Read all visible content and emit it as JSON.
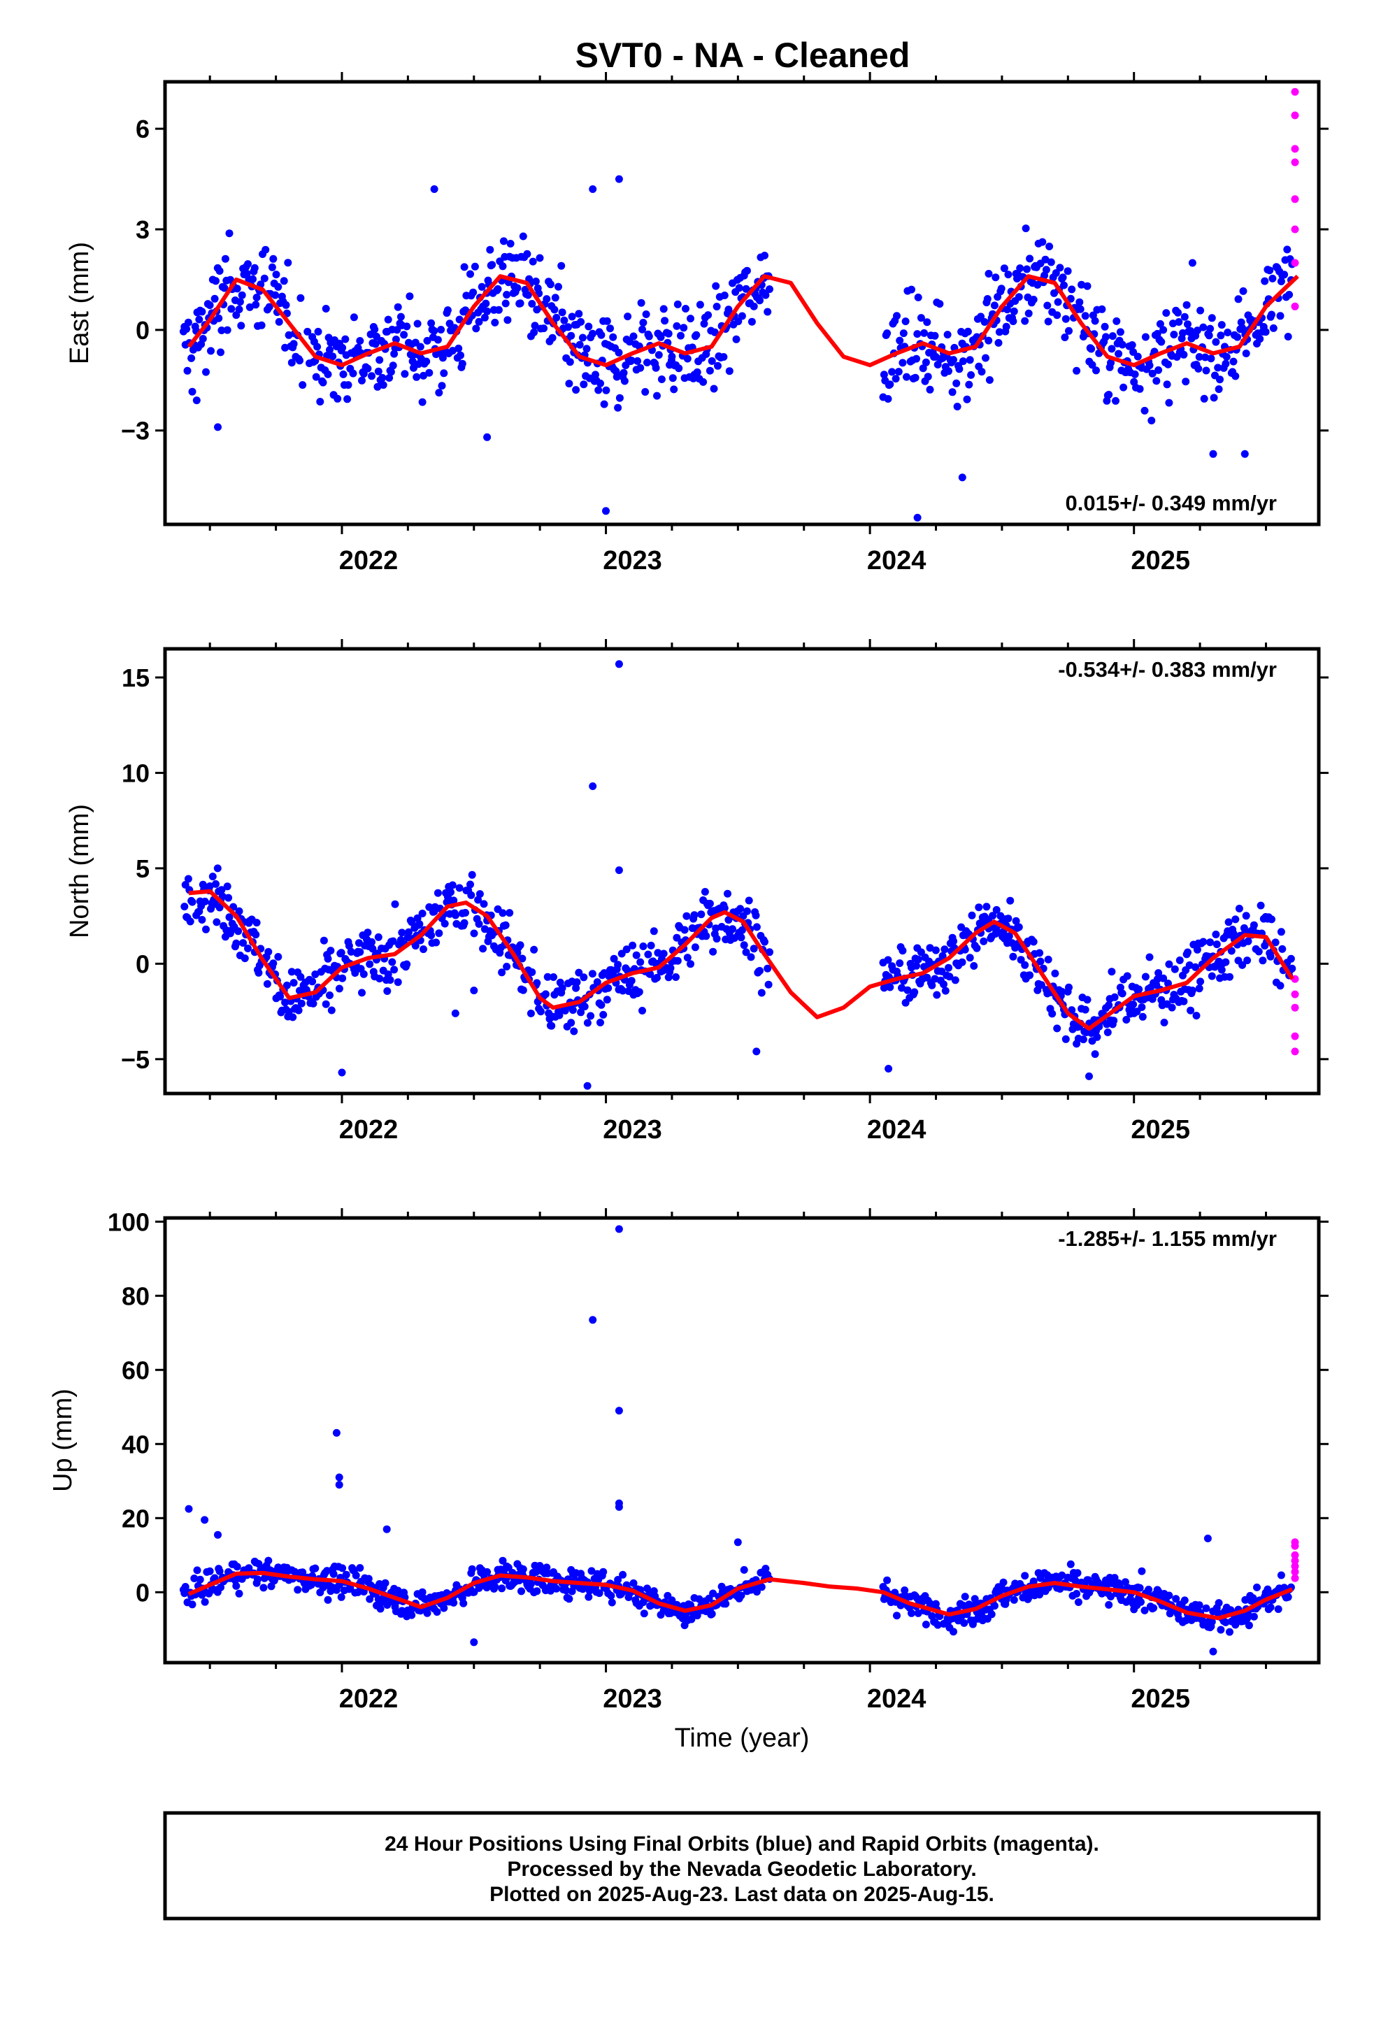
{
  "page": {
    "title": "SVT0  - NA - Cleaned",
    "footer": [
      "24 Hour Positions Using Final Orbits (blue) and Rapid Orbits (magenta).",
      "Processed by the Nevada Geodetic Laboratory.",
      "Plotted on 2025-Aug-23. Last data on 2025-Aug-15."
    ]
  },
  "colors": {
    "final": "#0000ff",
    "rapid": "#ff00ff",
    "model": "#ff0000",
    "frame": "#000000"
  },
  "chart_data": [
    {
      "type": "scatter",
      "name": "east",
      "title": "SVT0  - NA - Cleaned",
      "ylabel": "East (mm)",
      "xlabel": "",
      "xlim": [
        2021.33,
        2025.7
      ],
      "ylim": [
        -5.8,
        7.4
      ],
      "yticks": [
        -3,
        0,
        3,
        6
      ],
      "xticks": [
        2022,
        2023,
        2024,
        2025
      ],
      "rate_text": "0.015+/- 0.349 mm/yr",
      "grid": false,
      "model": {
        "type": "line",
        "points": [
          [
            2021.42,
            -0.5
          ],
          [
            2021.5,
            0.3
          ],
          [
            2021.6,
            1.5
          ],
          [
            2021.7,
            1.2
          ],
          [
            2021.8,
            0.2
          ],
          [
            2021.9,
            -0.8
          ],
          [
            2022.0,
            -1.05
          ],
          [
            2022.1,
            -0.7
          ],
          [
            2022.2,
            -0.4
          ],
          [
            2022.3,
            -0.7
          ],
          [
            2022.4,
            -0.5
          ],
          [
            2022.5,
            0.7
          ],
          [
            2022.6,
            1.6
          ],
          [
            2022.7,
            1.4
          ],
          [
            2022.8,
            0.2
          ],
          [
            2022.9,
            -0.8
          ],
          [
            2023.0,
            -1.05
          ],
          [
            2023.1,
            -0.7
          ],
          [
            2023.2,
            -0.4
          ],
          [
            2023.3,
            -0.7
          ],
          [
            2023.4,
            -0.5
          ],
          [
            2023.5,
            0.7
          ],
          [
            2023.6,
            1.6
          ],
          [
            2023.7,
            1.4
          ],
          [
            2023.8,
            0.2
          ],
          [
            2023.9,
            -0.8
          ],
          [
            2024.0,
            -1.05
          ],
          [
            2024.1,
            -0.7
          ],
          [
            2024.2,
            -0.4
          ],
          [
            2024.3,
            -0.7
          ],
          [
            2024.4,
            -0.5
          ],
          [
            2024.5,
            0.7
          ],
          [
            2024.6,
            1.6
          ],
          [
            2024.7,
            1.4
          ],
          [
            2024.8,
            0.2
          ],
          [
            2024.9,
            -0.8
          ],
          [
            2025.0,
            -1.05
          ],
          [
            2025.1,
            -0.7
          ],
          [
            2025.2,
            -0.4
          ],
          [
            2025.3,
            -0.7
          ],
          [
            2025.4,
            -0.5
          ],
          [
            2025.5,
            0.7
          ],
          [
            2025.62,
            1.6
          ]
        ]
      },
      "segments": [
        [
          2021.4,
          2021.95
        ],
        [
          2021.95,
          2022.55
        ],
        [
          2022.55,
          2023.25
        ],
        [
          2023.25,
          2023.62
        ],
        [
          2024.05,
          2024.45
        ],
        [
          2024.45,
          2025.0
        ],
        [
          2025.0,
          2025.6
        ]
      ],
      "noise": 1.1,
      "outliers_final": [
        [
          2021.45,
          -2.1
        ],
        [
          2021.53,
          -2.9
        ],
        [
          2022.35,
          4.2
        ],
        [
          2022.95,
          4.2
        ],
        [
          2023.05,
          4.5
        ],
        [
          2023.0,
          -5.4
        ],
        [
          2024.18,
          -5.6
        ],
        [
          2024.35,
          -4.4
        ],
        [
          2022.55,
          -3.2
        ],
        [
          2025.3,
          -3.7
        ],
        [
          2025.42,
          -3.7
        ]
      ],
      "rapid": [
        [
          2025.61,
          7.1
        ],
        [
          2025.61,
          6.4
        ],
        [
          2025.61,
          5.4
        ],
        [
          2025.61,
          5.0
        ],
        [
          2025.61,
          3.9
        ],
        [
          2025.61,
          3.0
        ],
        [
          2025.61,
          2.0
        ],
        [
          2025.61,
          0.7
        ]
      ]
    },
    {
      "type": "scatter",
      "name": "north",
      "ylabel": "North (mm)",
      "xlabel": "",
      "xlim": [
        2021.33,
        2025.7
      ],
      "ylim": [
        -6.8,
        16.5
      ],
      "yticks": [
        -5,
        0,
        5,
        10,
        15
      ],
      "xticks": [
        2022,
        2023,
        2024,
        2025
      ],
      "rate_text": "-0.534+/- 0.383 mm/yr",
      "grid": false,
      "model": {
        "type": "line",
        "points": [
          [
            2021.42,
            3.7
          ],
          [
            2021.5,
            3.8
          ],
          [
            2021.6,
            2.5
          ],
          [
            2021.7,
            0.2
          ],
          [
            2021.8,
            -1.8
          ],
          [
            2021.9,
            -1.5
          ],
          [
            2022.0,
            -0.2
          ],
          [
            2022.1,
            0.3
          ],
          [
            2022.2,
            0.5
          ],
          [
            2022.3,
            1.5
          ],
          [
            2022.4,
            3.0
          ],
          [
            2022.47,
            3.2
          ],
          [
            2022.55,
            2.5
          ],
          [
            2022.65,
            0.5
          ],
          [
            2022.75,
            -1.8
          ],
          [
            2022.8,
            -2.3
          ],
          [
            2022.9,
            -2.0
          ],
          [
            2023.0,
            -1.0
          ],
          [
            2023.1,
            -0.5
          ],
          [
            2023.2,
            -0.2
          ],
          [
            2023.3,
            1.0
          ],
          [
            2023.4,
            2.4
          ],
          [
            2023.45,
            2.7
          ],
          [
            2023.52,
            2.2
          ],
          [
            2023.6,
            0.5
          ],
          [
            2023.7,
            -1.5
          ],
          [
            2023.8,
            -2.8
          ],
          [
            2023.9,
            -2.3
          ],
          [
            2024.0,
            -1.2
          ],
          [
            2024.1,
            -0.8
          ],
          [
            2024.2,
            -0.5
          ],
          [
            2024.3,
            0.3
          ],
          [
            2024.4,
            1.6
          ],
          [
            2024.47,
            2.2
          ],
          [
            2024.55,
            1.6
          ],
          [
            2024.65,
            -0.5
          ],
          [
            2024.75,
            -2.6
          ],
          [
            2024.83,
            -3.4
          ],
          [
            2024.9,
            -2.7
          ],
          [
            2025.0,
            -1.7
          ],
          [
            2025.1,
            -1.4
          ],
          [
            2025.2,
            -1.0
          ],
          [
            2025.3,
            0.3
          ],
          [
            2025.42,
            1.5
          ],
          [
            2025.5,
            1.4
          ],
          [
            2025.6,
            -0.8
          ]
        ]
      },
      "segments": [
        [
          2021.4,
          2021.95
        ],
        [
          2021.95,
          2022.55
        ],
        [
          2022.55,
          2023.25
        ],
        [
          2023.25,
          2023.62
        ],
        [
          2024.05,
          2024.45
        ],
        [
          2024.45,
          2025.0
        ],
        [
          2025.0,
          2025.6
        ]
      ],
      "noise": 1.3,
      "outliers_final": [
        [
          2023.05,
          15.7
        ],
        [
          2022.95,
          9.3
        ],
        [
          2023.05,
          4.9
        ],
        [
          2022.93,
          -6.4
        ],
        [
          2022.0,
          -5.7
        ],
        [
          2024.07,
          -5.5
        ],
        [
          2024.83,
          -5.9
        ],
        [
          2022.43,
          -2.6
        ],
        [
          2022.5,
          -1.4
        ],
        [
          2023.57,
          -4.6
        ]
      ],
      "rapid": [
        [
          2025.61,
          -0.8
        ],
        [
          2025.61,
          -1.6
        ],
        [
          2025.61,
          -2.3
        ],
        [
          2025.61,
          -3.8
        ],
        [
          2025.61,
          -4.6
        ]
      ]
    },
    {
      "type": "scatter",
      "name": "up",
      "ylabel": "Up (mm)",
      "xlabel": "Time (year)",
      "xlim": [
        2021.33,
        2025.7
      ],
      "ylim": [
        -19,
        101
      ],
      "yticks": [
        0,
        20,
        40,
        60,
        80,
        100
      ],
      "xticks": [
        2022,
        2023,
        2024,
        2025
      ],
      "rate_text": "-1.285+/- 1.155 mm/yr",
      "grid": false,
      "model": {
        "type": "line",
        "points": [
          [
            2021.42,
            -0.5
          ],
          [
            2021.5,
            2.0
          ],
          [
            2021.6,
            5.0
          ],
          [
            2021.7,
            5.2
          ],
          [
            2021.8,
            4.2
          ],
          [
            2021.9,
            3.5
          ],
          [
            2022.0,
            3.0
          ],
          [
            2022.1,
            1.0
          ],
          [
            2022.2,
            -1.5
          ],
          [
            2022.3,
            -4.0
          ],
          [
            2022.4,
            -1.5
          ],
          [
            2022.5,
            2.5
          ],
          [
            2022.6,
            4.5
          ],
          [
            2022.7,
            4.0
          ],
          [
            2022.8,
            3.0
          ],
          [
            2022.9,
            2.5
          ],
          [
            2023.0,
            2.0
          ],
          [
            2023.1,
            0.5
          ],
          [
            2023.2,
            -3.0
          ],
          [
            2023.3,
            -5.0
          ],
          [
            2023.4,
            -3.5
          ],
          [
            2023.5,
            1.0
          ],
          [
            2023.62,
            3.5
          ],
          [
            2023.75,
            2.5
          ],
          [
            2023.85,
            1.5
          ],
          [
            2023.95,
            1.0
          ],
          [
            2024.05,
            0.0
          ],
          [
            2024.15,
            -3.0
          ],
          [
            2024.3,
            -6.0
          ],
          [
            2024.4,
            -4.5
          ],
          [
            2024.5,
            -1.0
          ],
          [
            2024.6,
            1.5
          ],
          [
            2024.7,
            2.5
          ],
          [
            2024.8,
            1.5
          ],
          [
            2024.9,
            0.8
          ],
          [
            2025.0,
            0.0
          ],
          [
            2025.1,
            -2.5
          ],
          [
            2025.2,
            -5.5
          ],
          [
            2025.32,
            -7.0
          ],
          [
            2025.42,
            -5.0
          ],
          [
            2025.5,
            -2.0
          ],
          [
            2025.6,
            0.8
          ]
        ]
      },
      "segments": [
        [
          2021.4,
          2021.95
        ],
        [
          2021.95,
          2022.55
        ],
        [
          2022.55,
          2023.25
        ],
        [
          2023.25,
          2023.62
        ],
        [
          2024.05,
          2024.45
        ],
        [
          2024.45,
          2025.0
        ],
        [
          2025.0,
          2025.6
        ]
      ],
      "noise": 3.2,
      "outliers_final": [
        [
          2023.05,
          98
        ],
        [
          2022.95,
          73.5
        ],
        [
          2023.05,
          49
        ],
        [
          2023.05,
          24
        ],
        [
          2023.05,
          23
        ],
        [
          2021.98,
          43
        ],
        [
          2021.99,
          31
        ],
        [
          2021.99,
          29
        ],
        [
          2022.17,
          17
        ],
        [
          2021.42,
          22.5
        ],
        [
          2021.48,
          19.5
        ],
        [
          2025.28,
          14.5
        ],
        [
          2023.5,
          13.5
        ],
        [
          2022.5,
          -13.5
        ],
        [
          2021.53,
          15.5
        ],
        [
          2025.3,
          -16
        ]
      ],
      "rapid": [
        [
          2025.61,
          13.5
        ],
        [
          2025.61,
          12.5
        ],
        [
          2025.61,
          10.0
        ],
        [
          2025.61,
          8.5
        ],
        [
          2025.61,
          7.0
        ],
        [
          2025.61,
          5.5
        ],
        [
          2025.61,
          3.8
        ]
      ]
    }
  ]
}
